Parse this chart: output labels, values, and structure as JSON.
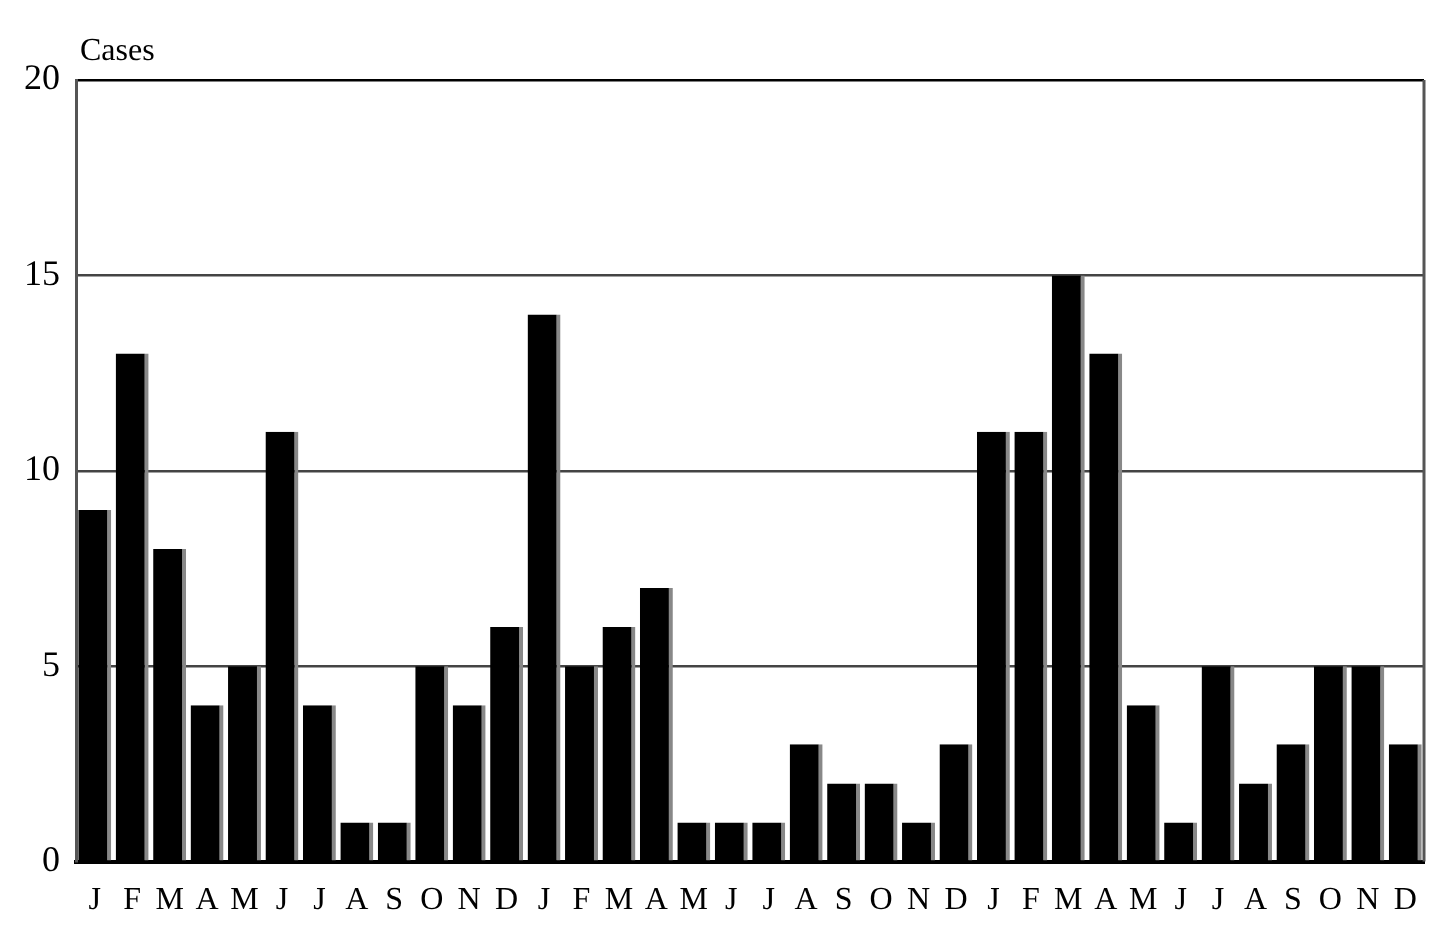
{
  "chart_data": {
    "type": "bar",
    "ylabel": "Cases",
    "categories": [
      "J",
      "F",
      "M",
      "A",
      "M",
      "J",
      "J",
      "A",
      "S",
      "O",
      "N",
      "D",
      "J",
      "F",
      "M",
      "A",
      "M",
      "J",
      "J",
      "A",
      "S",
      "O",
      "N",
      "D",
      "J",
      "F",
      "M",
      "A",
      "M",
      "J",
      "J",
      "A",
      "S",
      "O",
      "N",
      "D"
    ],
    "values": [
      9,
      13,
      8,
      4,
      5,
      11,
      4,
      1,
      1,
      5,
      4,
      6,
      14,
      5,
      6,
      7,
      1,
      1,
      1,
      3,
      2,
      2,
      1,
      3,
      11,
      11,
      15,
      13,
      4,
      1,
      5,
      2,
      3,
      5,
      5,
      3
    ],
    "color": "#000000",
    "ylim": [
      0,
      20
    ],
    "yticks": [
      0,
      5,
      10,
      15,
      20
    ],
    "grid": "y",
    "legend": false
  }
}
